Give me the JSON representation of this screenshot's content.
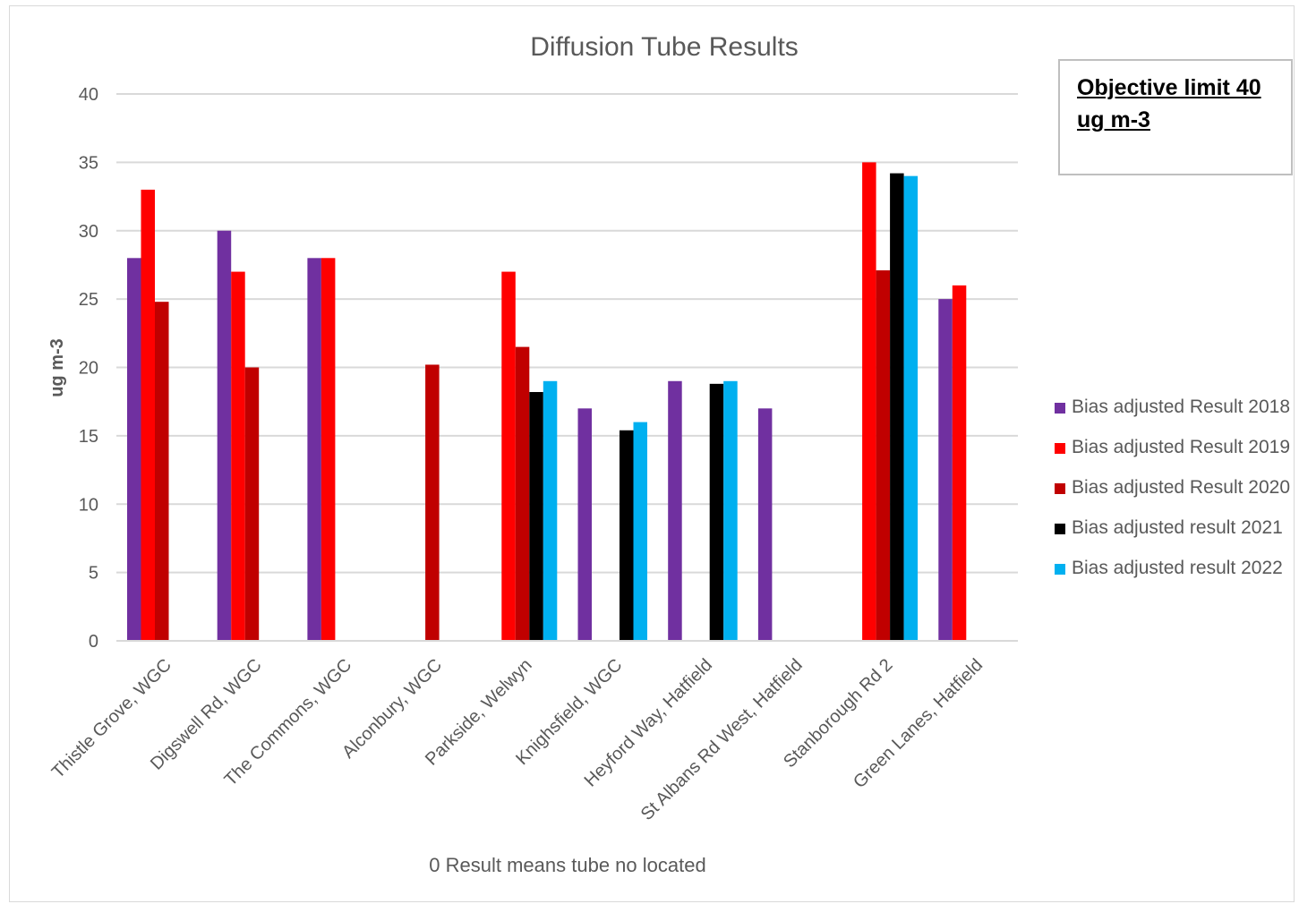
{
  "chart_data": {
    "type": "bar",
    "title": "Diffusion Tube Results",
    "xlabel": "0 Result means tube no located",
    "ylabel": "ug m-3",
    "ylim": [
      0,
      40
    ],
    "yticks": [
      0,
      5,
      10,
      15,
      20,
      25,
      30,
      35,
      40
    ],
    "grid": true,
    "legend_position": "right",
    "categories": [
      "Thistle Grove, WGC",
      "Digswell Rd, WGC",
      "The Commons, WGC",
      "Alconbury, WGC",
      "Parkside, Welwyn",
      "Knighsfield, WGC",
      "Heyford Way, Hatfield",
      "St Albans Rd West, Hatfield",
      "Stanborough Rd 2",
      "Green Lanes, Hatfield"
    ],
    "series": [
      {
        "name": "Bias adjusted Result 2018",
        "color": "#7030a0",
        "values": [
          28,
          30,
          28,
          0,
          0,
          17,
          19,
          17,
          0,
          25
        ]
      },
      {
        "name": "Bias adjusted Result 2019",
        "color": "#ff0000",
        "values": [
          33,
          27,
          28,
          0,
          27,
          0,
          0,
          0,
          35,
          26
        ]
      },
      {
        "name": "Bias adjusted Result 2020",
        "color": "#c00000",
        "values": [
          24.8,
          20,
          0,
          20.2,
          21.5,
          0,
          0,
          0,
          27.1,
          0
        ]
      },
      {
        "name": "Bias adjusted result 2021",
        "color": "#000000",
        "values": [
          0,
          0,
          0,
          0,
          18.2,
          15.4,
          18.8,
          0,
          34.2,
          0
        ]
      },
      {
        "name": "Bias adjusted result 2022",
        "color": "#00b0f0",
        "values": [
          0,
          0,
          0,
          0,
          19,
          16,
          19,
          0,
          34,
          0
        ]
      }
    ]
  },
  "note": {
    "text": "Objective limit  40 ug m-3"
  }
}
